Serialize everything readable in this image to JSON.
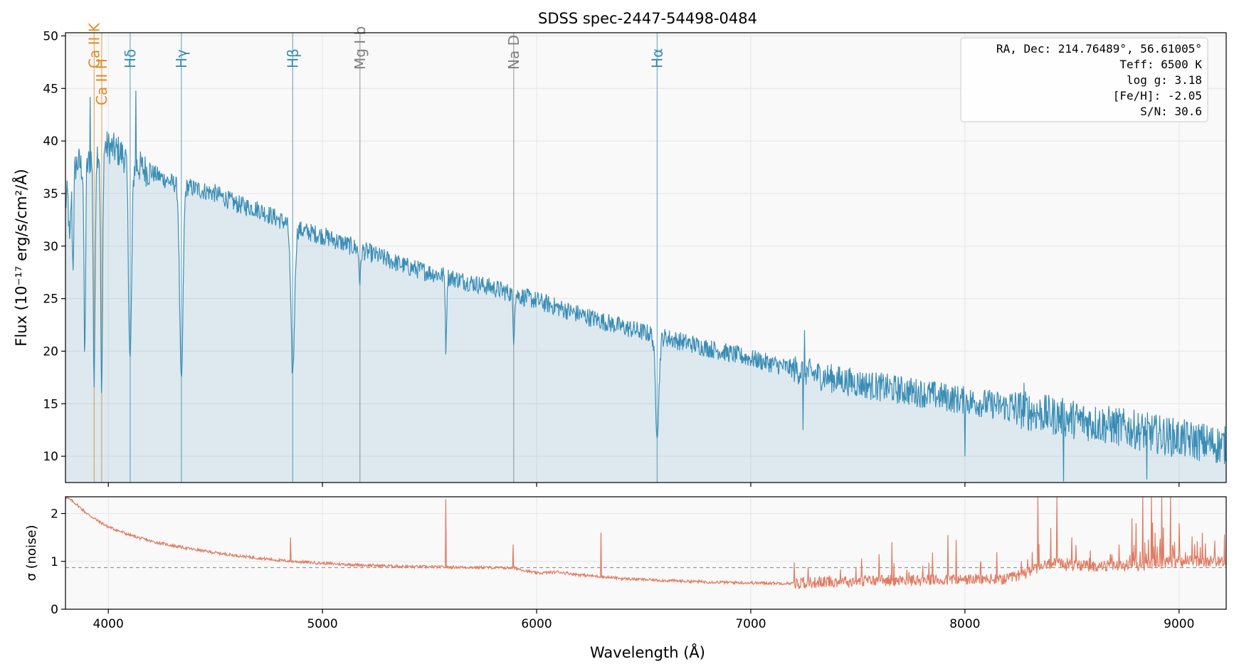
{
  "chart_data": [
    {
      "type": "line",
      "title": "SDSS spec-2447-54498-0484",
      "xlabel": "",
      "ylabel": "Flux (10⁻¹⁷ erg/s/cm²/Å)",
      "xlim": [
        3800,
        9220
      ],
      "ylim": [
        7.5,
        50.3
      ],
      "yticks": [
        10,
        15,
        20,
        25,
        30,
        35,
        40,
        45,
        50
      ],
      "xticks": [
        4000,
        5000,
        6000,
        7000,
        8000,
        9000
      ],
      "grid": true,
      "fill_under": true,
      "series": [
        {
          "color": "#3a8db5",
          "x": [
            3800,
            3830,
            3860,
            3890,
            3920,
            3950,
            3990,
            4050,
            4100,
            4200,
            4300,
            4400,
            4500,
            4600,
            4700,
            4800,
            4900,
            5000,
            5200,
            5400,
            5600,
            5800,
            6000,
            6200,
            6400,
            6600,
            6800,
            7000,
            7200,
            7400,
            7600,
            7800,
            8000,
            8200,
            8400,
            8600,
            8800,
            9000,
            9220
          ],
          "y": [
            34,
            37,
            38,
            37,
            38.5,
            39,
            39.5,
            39,
            38,
            37,
            36,
            35.5,
            35,
            34,
            33.5,
            32.5,
            31.5,
            31,
            29.5,
            28,
            27,
            26,
            24.8,
            23.5,
            22.3,
            21.3,
            20.3,
            19.3,
            18.3,
            17.3,
            16.6,
            16,
            15.3,
            14.7,
            13.9,
            13.2,
            12.5,
            11.7,
            11
          ]
        }
      ],
      "lines": [
        {
          "label": "Ca II K",
          "x": 3934,
          "color": "#e08a26"
        },
        {
          "label": "Ca II H",
          "x": 3969,
          "color": "#e08a26"
        },
        {
          "label": "Hδ",
          "x": 4102,
          "color": "#3a8db5"
        },
        {
          "label": "Hγ",
          "x": 4341,
          "color": "#3a8db5"
        },
        {
          "label": "Hβ",
          "x": 4861,
          "color": "#3a8db5"
        },
        {
          "label": "Mg I b",
          "x": 5175,
          "color": "#7f7f7f"
        },
        {
          "label": "Na D",
          "x": 5893,
          "color": "#7f7f7f"
        },
        {
          "label": "Hα",
          "x": 6563,
          "color": "#3a8db5"
        }
      ],
      "annotation": {
        "placement": "top-right",
        "lines": [
          "RA, Dec: 214.76489°, 56.61005°",
          "Teff: 6500 K",
          "log g: 3.18",
          "[Fe/H]: -2.05",
          "S/N: 30.6"
        ]
      }
    },
    {
      "type": "line",
      "title": "",
      "xlabel": "Wavelength (Å)",
      "ylabel": "σ (noise)",
      "xlim": [
        3800,
        9220
      ],
      "ylim": [
        0,
        2.35
      ],
      "yticks": [
        0,
        1,
        2
      ],
      "xticks": [
        4000,
        5000,
        6000,
        7000,
        8000,
        9000
      ],
      "xticklabels": [
        "4000",
        "5000",
        "6000",
        "7000",
        "8000",
        "9000"
      ],
      "grid": true,
      "reference_line": {
        "y": 0.87,
        "color": "#999999"
      },
      "series": [
        {
          "color": "#e07b62",
          "x": [
            3800,
            3850,
            3900,
            3950,
            4000,
            4100,
            4200,
            4300,
            4400,
            4500,
            4600,
            4700,
            4800,
            5000,
            5200,
            5400,
            5600,
            5800,
            5900,
            6000,
            6100,
            6200,
            6400,
            6600,
            6800,
            7000,
            7200,
            7400,
            7600,
            7800,
            8000,
            8200,
            8300,
            8400,
            8600,
            8800,
            9000,
            9220
          ],
          "y": [
            2.35,
            2.2,
            2.0,
            1.85,
            1.72,
            1.55,
            1.42,
            1.33,
            1.25,
            1.18,
            1.12,
            1.07,
            1.02,
            0.96,
            0.92,
            0.89,
            0.88,
            0.87,
            0.86,
            0.75,
            0.78,
            0.72,
            0.64,
            0.6,
            0.57,
            0.55,
            0.54,
            0.58,
            0.6,
            0.6,
            0.62,
            0.62,
            0.8,
            0.95,
            0.9,
            0.9,
            1.0,
            1.0
          ]
        }
      ]
    }
  ]
}
